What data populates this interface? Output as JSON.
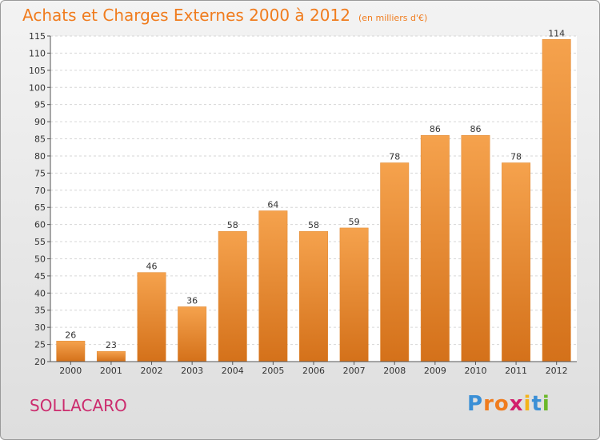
{
  "header": {
    "title": "Achats et Charges Externes 2000 à 2012",
    "subtitle": "(en milliers d'€)"
  },
  "footer": {
    "commune": "SOLLACARO",
    "logo_text": "Proxiti"
  },
  "colors": {
    "bar_top": "#f5a24d",
    "bar_bottom": "#d4711a",
    "title": "#f07c1e",
    "commune": "#cc2c6e"
  },
  "chart_data": {
    "type": "bar",
    "title": "Achats et Charges Externes 2000 à 2012",
    "subtitle": "(en milliers d'€)",
    "categories": [
      "2000",
      "2001",
      "2002",
      "2003",
      "2004",
      "2005",
      "2006",
      "2007",
      "2008",
      "2009",
      "2010",
      "2011",
      "2012"
    ],
    "values": [
      26,
      23,
      46,
      36,
      58,
      64,
      58,
      59,
      78,
      86,
      86,
      78,
      114
    ],
    "ylim": [
      20,
      115
    ],
    "yticks": [
      20,
      25,
      30,
      35,
      40,
      45,
      50,
      55,
      60,
      65,
      70,
      75,
      80,
      85,
      90,
      95,
      100,
      105,
      110,
      115
    ],
    "grid": true,
    "xlabel": "",
    "ylabel": ""
  }
}
